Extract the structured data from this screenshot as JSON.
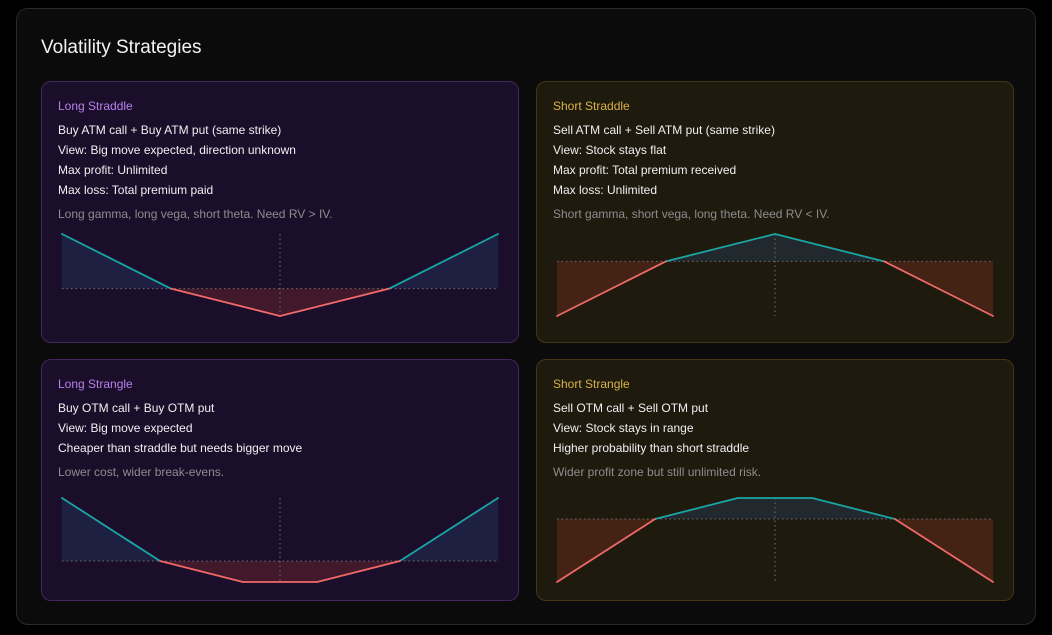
{
  "title": "Volatility Strategies",
  "colors": {
    "long_accent": "#b780ec",
    "short_accent": "#d9b348",
    "profit_line": "#1aa5a5",
    "loss_line": "#f06868",
    "long_card_bg": "#1b0e2a",
    "short_card_bg": "#1f1a0e"
  },
  "cards": [
    {
      "name": "Long Straddle",
      "lines": [
        "Buy ATM call + Buy ATM put (same strike)",
        "View: Big move expected, direction unknown",
        "Max profit: Unlimited",
        "Max loss: Total premium paid"
      ],
      "note": "Long gamma, long vega, short theta. Need RV > IV."
    },
    {
      "name": "Short Straddle",
      "lines": [
        "Sell ATM call + Sell ATM put (same strike)",
        "View: Stock stays flat",
        "Max profit: Total premium received",
        "Max loss: Unlimited"
      ],
      "note": "Short gamma, short vega, long theta. Need RV < IV."
    },
    {
      "name": "Long Strangle",
      "lines": [
        "Buy OTM call + Buy OTM put",
        "View: Big move expected",
        "Cheaper than straddle but needs bigger move"
      ],
      "note": "Lower cost, wider break-evens."
    },
    {
      "name": "Short Strangle",
      "lines": [
        "Sell OTM call + Sell OTM put",
        "View: Stock stays in range",
        "Higher probability than short straddle"
      ],
      "note": "Wider profit zone but still unlimited risk."
    }
  ],
  "chart_data": [
    {
      "type": "line",
      "strategy": "Long Straddle",
      "x": [
        -100,
        -50,
        0,
        50,
        100
      ],
      "y": [
        2,
        0,
        -1,
        0,
        2
      ],
      "xlim": [
        -100,
        100
      ],
      "ylim": [
        -1,
        2
      ],
      "center_line_x": 0,
      "zero_line": true
    },
    {
      "type": "line",
      "strategy": "Short Straddle",
      "x": [
        -100,
        -50,
        0,
        50,
        100
      ],
      "y": [
        -2,
        0,
        1,
        0,
        -2
      ],
      "xlim": [
        -100,
        100
      ],
      "ylim": [
        -2,
        1
      ],
      "center_line_x": 0,
      "zero_line": true
    },
    {
      "type": "line",
      "strategy": "Long Strangle",
      "x": [
        -100,
        -55,
        -17,
        17,
        55,
        100
      ],
      "y": [
        3,
        0,
        -1,
        -1,
        0,
        3
      ],
      "xlim": [
        -100,
        100
      ],
      "ylim": [
        -1,
        3
      ],
      "center_line_x": 0,
      "zero_line": true
    },
    {
      "type": "line",
      "strategy": "Short Strangle",
      "x": [
        -100,
        -55,
        -17,
        17,
        55,
        100
      ],
      "y": [
        -3,
        0,
        1,
        1,
        0,
        -3
      ],
      "xlim": [
        -100,
        100
      ],
      "ylim": [
        -3,
        1
      ],
      "center_line_x": 0,
      "zero_line": true
    }
  ]
}
